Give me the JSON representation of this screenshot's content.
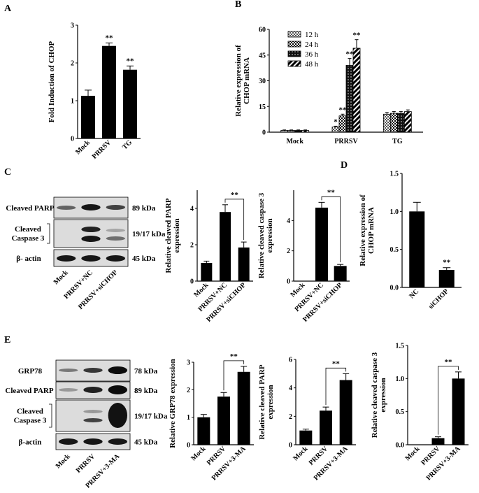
{
  "panel_letters": [
    "A",
    "B",
    "C",
    "D",
    "E"
  ],
  "chart_data": [
    {
      "id": "A",
      "type": "bar",
      "ylabel": "Fold Induction of CHOP",
      "categories": [
        "Mock",
        "PRRSV",
        "TG"
      ],
      "values": [
        1.13,
        2.45,
        1.82
      ],
      "errors": [
        0.15,
        0.08,
        0.1
      ],
      "stars": [
        "",
        "**",
        "**"
      ],
      "ylim": [
        0,
        3
      ],
      "yticks": [
        0,
        1,
        2,
        3
      ]
    },
    {
      "id": "B",
      "type": "bar",
      "ylabel": "Relative expression of CHOP mRNA",
      "categories": [
        "Mock",
        "PRRSV",
        "TG"
      ],
      "series": [
        {
          "name": "12 h",
          "values": [
            1,
            3,
            10.5
          ],
          "errors": [
            0.3,
            0.5,
            1
          ],
          "stars": [
            "",
            "*",
            ""
          ]
        },
        {
          "name": "24 h",
          "values": [
            1,
            9.5,
            11
          ],
          "errors": [
            0.3,
            1,
            1
          ],
          "stars": [
            "",
            "**",
            ""
          ]
        },
        {
          "name": "36 h",
          "values": [
            1,
            39,
            11
          ],
          "errors": [
            0.3,
            4,
            1
          ],
          "stars": [
            "",
            "**",
            ""
          ]
        },
        {
          "name": "48 h",
          "values": [
            1,
            49,
            12
          ],
          "errors": [
            0.3,
            5,
            1
          ],
          "stars": [
            "",
            "**",
            ""
          ]
        }
      ],
      "ylim": [
        0,
        60
      ],
      "yticks": [
        0,
        15,
        30,
        45,
        60
      ],
      "legend": "top-left"
    },
    {
      "id": "C1",
      "type": "bar",
      "ylabel": "Relative cleaved PARP expression",
      "categories": [
        "Mock",
        "PRRSV+NC",
        "PRRSV+siCHOP"
      ],
      "values": [
        1,
        3.8,
        1.85
      ],
      "errors": [
        0.1,
        0.4,
        0.3
      ],
      "ylim": [
        0,
        5
      ],
      "yticks": [
        0,
        2,
        4
      ],
      "bracket": {
        "from": 1,
        "to": 2,
        "label": "**"
      }
    },
    {
      "id": "C2",
      "type": "bar",
      "ylabel": "Relative cleaved caspase 3 expression",
      "categories": [
        "Mock",
        "PRRSV+NC",
        "PRRSV+siCHOP"
      ],
      "values": [
        0,
        4.85,
        1
      ],
      "errors": [
        0,
        0.35,
        0.1
      ],
      "ylim": [
        0,
        6
      ],
      "yticks": [
        0,
        2,
        4
      ],
      "bracket": {
        "from": 1,
        "to": 2,
        "label": "**"
      }
    },
    {
      "id": "D",
      "type": "bar",
      "ylabel": "Relative expression of CHOP mRNA",
      "categories": [
        "NC",
        "siCHOP"
      ],
      "values": [
        1,
        0.23
      ],
      "errors": [
        0.12,
        0.03
      ],
      "stars": [
        "",
        "**"
      ],
      "ylim": [
        0,
        1.5
      ],
      "yticks": [
        0.0,
        0.5,
        1.0,
        1.5
      ]
    },
    {
      "id": "E1",
      "type": "bar",
      "ylabel": "Relative GRP78 expression",
      "categories": [
        "Mock",
        "PRRSV",
        "PRRSV+3-MA"
      ],
      "values": [
        1,
        1.75,
        2.65
      ],
      "errors": [
        0.1,
        0.15,
        0.2
      ],
      "ylim": [
        0,
        3
      ],
      "yticks": [
        0,
        1,
        2,
        3
      ],
      "bracket": {
        "from": 1,
        "to": 2,
        "label": "**"
      }
    },
    {
      "id": "E2",
      "type": "bar",
      "ylabel": "Relative cleaved PARP expression",
      "categories": [
        "Mock",
        "PRRSV",
        "PRRSV+3-MA"
      ],
      "values": [
        1,
        2.4,
        4.55
      ],
      "errors": [
        0.1,
        0.25,
        0.45
      ],
      "ylim": [
        0,
        6
      ],
      "yticks": [
        0,
        2,
        4,
        6
      ],
      "bracket": {
        "from": 1,
        "to": 2,
        "label": "**"
      }
    },
    {
      "id": "E3",
      "type": "bar",
      "ylabel": "Relative cleaved caspase 3 expression",
      "categories": [
        "Mock",
        "PRRSV",
        "PRRSV+3-MA"
      ],
      "values": [
        0,
        0.1,
        1
      ],
      "errors": [
        0,
        0.02,
        0.1
      ],
      "ylim": [
        0,
        1.5
      ],
      "yticks": [
        0.0,
        0.5,
        1.0,
        1.5
      ],
      "bracket": {
        "from": 1,
        "to": 2,
        "label": "**"
      }
    }
  ],
  "blots": {
    "C": {
      "rows": [
        {
          "label": "Cleaved PARP",
          "kda": "89 kDa"
        },
        {
          "label": "Cleaved Caspase 3",
          "kda": "19/17 kDa"
        },
        {
          "label": "β- actin",
          "kda": "45 kDa"
        }
      ],
      "lanes": [
        "Mock",
        "PRRSV+NC",
        "PRRSV+siCHOP"
      ]
    },
    "E": {
      "rows": [
        {
          "label": "GRP78",
          "kda": "78 kDa"
        },
        {
          "label": "Cleaved PARP",
          "kda": "89 kDa"
        },
        {
          "label": "Cleaved Caspase 3",
          "kda": "19/17 kDa"
        },
        {
          "label": "β-actin",
          "kda": "45 kDa"
        }
      ],
      "lanes": [
        "Mock",
        "PRRSV",
        "PRRSV+3-MA"
      ]
    }
  }
}
